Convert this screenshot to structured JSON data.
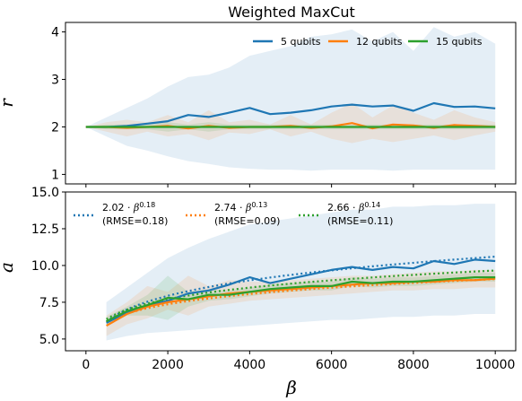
{
  "figure": {
    "title": "Weighted MaxCut"
  },
  "chart_data": [
    {
      "type": "line",
      "title": "Weighted MaxCut",
      "xlabel": "",
      "ylabel": "r",
      "xlim": [
        -500,
        10500
      ],
      "ylim": [
        0.8,
        4.2
      ],
      "yticks": [
        1,
        2,
        3,
        4
      ],
      "ytick_labels": [
        "1",
        "2",
        "3",
        "4"
      ],
      "legend_placement": "top-right",
      "legend_layout": "row",
      "x": [
        0,
        500,
        1000,
        1500,
        2000,
        2500,
        3000,
        3500,
        4000,
        4500,
        5000,
        5500,
        6000,
        6500,
        7000,
        7500,
        8000,
        8500,
        9000,
        9500,
        10000
      ],
      "series": [
        {
          "name": "5 qubits",
          "color": "#1f77b4",
          "values": [
            2.0,
            2.0,
            2.02,
            2.07,
            2.12,
            2.25,
            2.21,
            2.3,
            2.4,
            2.27,
            2.3,
            2.35,
            2.43,
            2.47,
            2.43,
            2.45,
            2.34,
            2.5,
            2.42,
            2.43,
            2.39
          ],
          "band_upper": [
            2.0,
            2.2,
            2.4,
            2.6,
            2.85,
            3.05,
            3.1,
            3.25,
            3.5,
            3.6,
            3.7,
            3.9,
            3.95,
            4.05,
            3.8,
            4.0,
            3.6,
            4.1,
            3.9,
            4.0,
            3.75
          ],
          "band_lower": [
            2.0,
            1.8,
            1.6,
            1.5,
            1.38,
            1.28,
            1.22,
            1.15,
            1.12,
            1.1,
            1.1,
            1.08,
            1.1,
            1.1,
            1.1,
            1.08,
            1.1,
            1.1,
            1.1,
            1.1,
            1.1
          ]
        },
        {
          "name": "12 qubits",
          "color": "#ff7f0e",
          "values": [
            2.0,
            2.0,
            1.98,
            2.0,
            2.02,
            1.97,
            2.02,
            1.98,
            2.0,
            2.0,
            2.02,
            1.98,
            2.01,
            2.08,
            1.97,
            2.05,
            2.03,
            1.98,
            2.04,
            2.02,
            2.0
          ],
          "band_upper": [
            2.0,
            2.1,
            2.15,
            2.1,
            2.25,
            2.1,
            2.35,
            2.1,
            2.15,
            2.05,
            2.25,
            2.05,
            2.3,
            2.5,
            2.2,
            2.45,
            2.3,
            2.15,
            2.35,
            2.2,
            2.1
          ],
          "band_lower": [
            2.0,
            1.9,
            1.8,
            1.9,
            1.8,
            1.85,
            1.72,
            1.88,
            1.85,
            1.95,
            1.8,
            1.9,
            1.75,
            1.66,
            1.75,
            1.68,
            1.75,
            1.82,
            1.72,
            1.82,
            1.9
          ]
        },
        {
          "name": "15 qubits",
          "color": "#2ca02c",
          "values": [
            2.0,
            2.0,
            2.0,
            2.0,
            2.0,
            2.0,
            2.0,
            2.0,
            2.0,
            2.0,
            2.0,
            2.0,
            2.0,
            2.0,
            2.0,
            2.0,
            2.0,
            2.0,
            2.0,
            2.0,
            2.0
          ],
          "band_upper": [
            2.0,
            2.05,
            2.05,
            2.05,
            2.1,
            2.05,
            2.1,
            2.05,
            2.05,
            2.05,
            2.05,
            2.05,
            2.05,
            2.05,
            2.05,
            2.05,
            2.05,
            2.05,
            2.05,
            2.05,
            2.05
          ],
          "band_lower": [
            2.0,
            1.95,
            1.95,
            1.95,
            1.9,
            1.95,
            1.9,
            1.95,
            1.95,
            1.95,
            1.95,
            1.95,
            1.95,
            1.95,
            1.95,
            1.95,
            1.95,
            1.95,
            1.95,
            1.95,
            1.95
          ]
        }
      ]
    },
    {
      "type": "line",
      "title": "",
      "xlabel": "β",
      "ylabel": "a",
      "xlim": [
        -500,
        10500
      ],
      "ylim": [
        4.2,
        15.0
      ],
      "xticks": [
        0,
        2000,
        4000,
        6000,
        8000,
        10000
      ],
      "xtick_labels": [
        "0",
        "2000",
        "4000",
        "6000",
        "8000",
        "10000"
      ],
      "yticks": [
        5.0,
        7.5,
        10.0,
        12.5,
        15.0
      ],
      "ytick_labels": [
        "5.0",
        "7.5",
        "10.0",
        "12.5",
        "15.0"
      ],
      "legend_placement": "top",
      "legend_layout": "row",
      "x": [
        500,
        1000,
        1500,
        2000,
        2500,
        3000,
        3500,
        4000,
        4500,
        5000,
        5500,
        6000,
        6500,
        7000,
        7500,
        8000,
        8500,
        9000,
        9500,
        10000
      ],
      "series": [
        {
          "name": "5 qubits",
          "color": "#1f77b4",
          "values": [
            6.1,
            6.8,
            7.3,
            7.6,
            8.1,
            8.3,
            8.7,
            9.2,
            8.8,
            9.1,
            9.4,
            9.7,
            9.9,
            9.7,
            9.9,
            9.8,
            10.3,
            10.1,
            10.4,
            10.3
          ],
          "band_upper": [
            7.5,
            8.5,
            9.5,
            10.5,
            11.2,
            11.8,
            12.3,
            12.8,
            13.0,
            13.2,
            13.4,
            13.6,
            13.8,
            13.8,
            14.0,
            14.0,
            14.1,
            14.1,
            14.2,
            14.2
          ],
          "band_lower": [
            4.9,
            5.2,
            5.4,
            5.5,
            5.6,
            5.7,
            5.8,
            5.9,
            6.0,
            6.1,
            6.2,
            6.3,
            6.3,
            6.4,
            6.5,
            6.5,
            6.6,
            6.6,
            6.7,
            6.7
          ]
        },
        {
          "name": "12 qubits",
          "color": "#ff7f0e",
          "values": [
            5.9,
            6.7,
            7.2,
            7.5,
            7.7,
            7.9,
            8.1,
            8.2,
            8.3,
            8.4,
            8.5,
            8.6,
            8.7,
            8.8,
            8.8,
            8.9,
            8.9,
            9.0,
            9.0,
            9.1
          ],
          "band_upper": [
            6.6,
            7.5,
            8.6,
            8.2,
            9.3,
            8.6,
            9.0,
            8.9,
            8.9,
            9.0,
            9.1,
            9.2,
            9.3,
            9.3,
            9.4,
            9.5,
            9.6,
            9.6,
            9.7,
            9.7
          ],
          "band_lower": [
            5.2,
            6.0,
            6.4,
            7.0,
            6.6,
            7.2,
            7.4,
            7.6,
            7.7,
            7.8,
            7.9,
            8.0,
            8.1,
            8.2,
            8.3,
            8.3,
            8.4,
            8.4,
            8.5,
            8.5
          ]
        },
        {
          "name": "15 qubits",
          "color": "#2ca02c",
          "values": [
            6.2,
            6.9,
            7.3,
            7.8,
            7.7,
            8.0,
            8.0,
            8.2,
            8.4,
            8.5,
            8.6,
            8.6,
            8.9,
            8.8,
            8.9,
            8.9,
            9.0,
            9.1,
            9.2,
            9.2
          ],
          "band_upper": [
            6.5,
            7.2,
            8.0,
            9.3,
            8.2,
            8.4,
            8.3,
            8.5,
            8.7,
            8.8,
            8.9,
            8.9,
            9.2,
            9.1,
            9.2,
            9.2,
            9.3,
            9.4,
            9.5,
            9.5
          ],
          "band_lower": [
            5.9,
            6.6,
            6.6,
            6.3,
            7.2,
            7.6,
            7.7,
            7.9,
            8.1,
            8.2,
            8.3,
            8.3,
            8.6,
            8.5,
            8.6,
            8.6,
            8.7,
            8.8,
            8.9,
            8.9
          ]
        }
      ],
      "fits": [
        {
          "coef": "2.02",
          "exponent": "0.18",
          "rmse_label": "(RMSE=0.18)",
          "color": "#1f77b4",
          "c": 2.02,
          "k": 0.18
        },
        {
          "coef": "2.74",
          "exponent": "0.13",
          "rmse_label": "(RMSE=0.09)",
          "color": "#ff7f0e",
          "c": 2.74,
          "k": 0.13
        },
        {
          "coef": "2.66",
          "exponent": "0.14",
          "rmse_label": "(RMSE=0.11)",
          "color": "#2ca02c",
          "c": 2.66,
          "k": 0.14
        }
      ]
    }
  ]
}
